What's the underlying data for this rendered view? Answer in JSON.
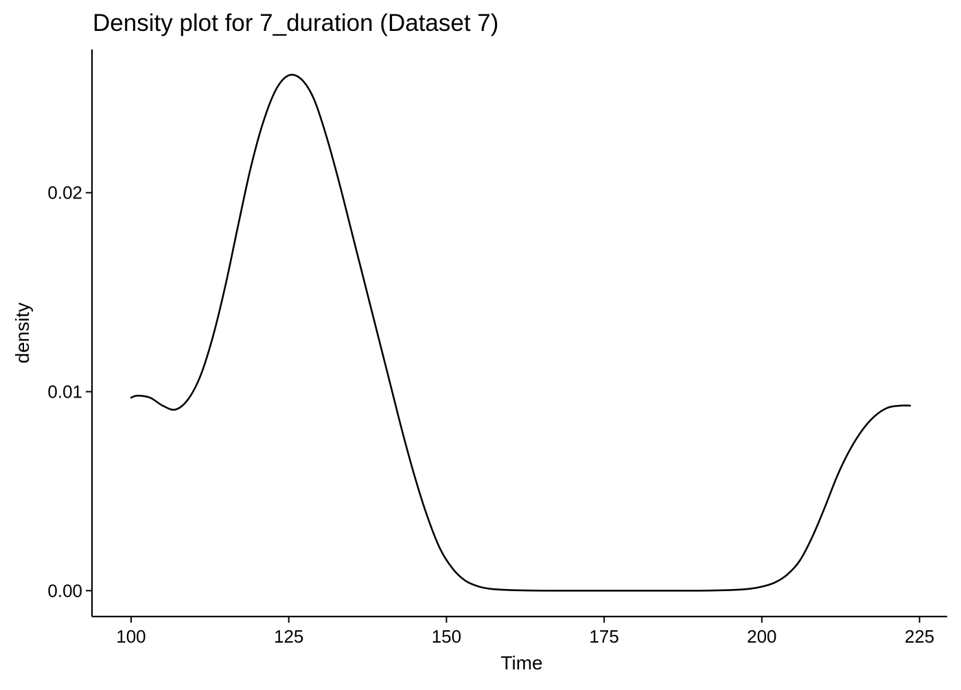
{
  "chart_data": {
    "type": "line",
    "title": "Density plot for 7_duration (Dataset 7)",
    "xlabel": "Time",
    "ylabel": "density",
    "xlim": [
      93.8,
      229.4
    ],
    "ylim": [
      -0.0013,
      0.0272
    ],
    "x_ticks": [
      100,
      125,
      150,
      175,
      200,
      225
    ],
    "y_ticks": [
      0.0,
      0.01,
      0.02
    ],
    "x_tick_labels": [
      "100",
      "125",
      "150",
      "175",
      "200",
      "225"
    ],
    "y_tick_labels": [
      "0.00",
      "0.01",
      "0.02"
    ],
    "grid": false,
    "line_color": "#000000",
    "series": [
      {
        "x": [
          100,
          101,
          103,
          105,
          107,
          109,
          111,
          113,
          115,
          117,
          119,
          121,
          123,
          125,
          127,
          129,
          131,
          133,
          135,
          137,
          139,
          141,
          143,
          145,
          147,
          149,
          151,
          153,
          155,
          157,
          160,
          163,
          166,
          170,
          175,
          180,
          185,
          190,
          195,
          198,
          200,
          202,
          204,
          206,
          208,
          210,
          212,
          214,
          216,
          218,
          220,
          222,
          223.5
        ],
        "values": [
          0.0097,
          0.0098,
          0.0097,
          0.0093,
          0.0091,
          0.0096,
          0.0108,
          0.0128,
          0.0154,
          0.0184,
          0.0213,
          0.0236,
          0.0252,
          0.0259,
          0.0257,
          0.0247,
          0.0228,
          0.0205,
          0.018,
          0.0155,
          0.013,
          0.0105,
          0.008,
          0.0057,
          0.0037,
          0.0021,
          0.0011,
          0.0005,
          0.00022,
          9e-05,
          3e-05,
          1e-05,
          0.0,
          0.0,
          0.0,
          0.0,
          0.0,
          0.0,
          3e-05,
          9e-05,
          0.0002,
          0.0004,
          0.0008,
          0.0015,
          0.0027,
          0.0042,
          0.0058,
          0.0071,
          0.0081,
          0.0088,
          0.0092,
          0.0093,
          0.0093
        ]
      }
    ]
  }
}
